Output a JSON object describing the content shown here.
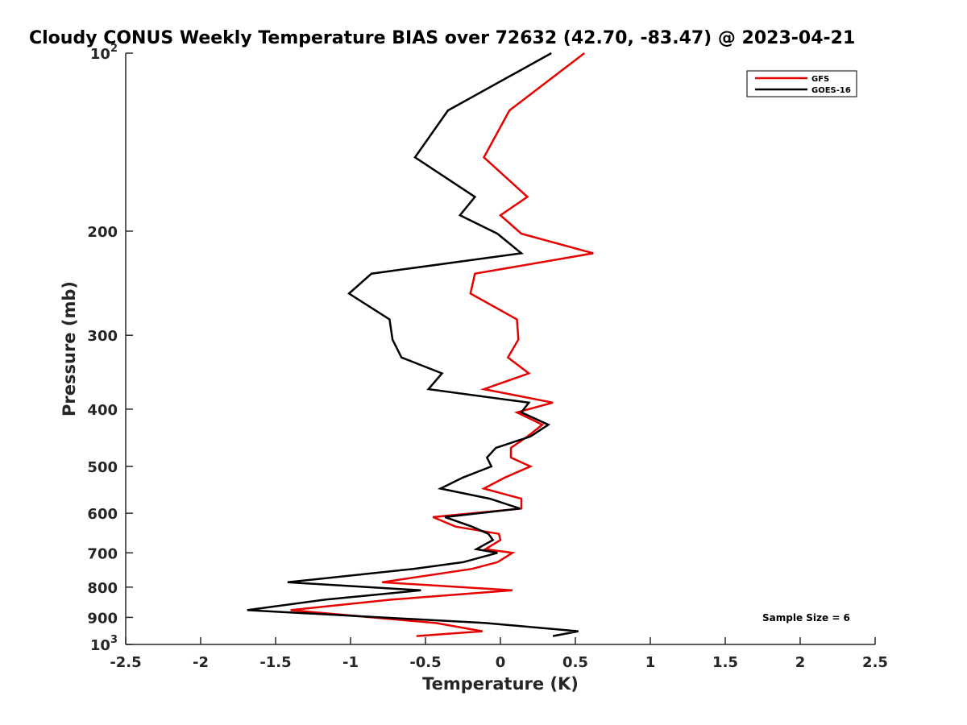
{
  "chart_data": {
    "type": "line",
    "title": "Cloudy CONUS Weekly Temperature BIAS over 72632 (42.70, -83.47) @ 2023-04-21",
    "xlabel": "Temperature (K)",
    "ylabel": "Pressure (mb)",
    "xlim": [
      -2.5,
      2.5
    ],
    "ylim": [
      1000,
      100
    ],
    "yscale": "log",
    "x_ticks": [
      "-2.5",
      "-2",
      "-1.5",
      "-1",
      "-0.5",
      "0",
      "0.5",
      "1",
      "1.5",
      "2",
      "2.5"
    ],
    "y_ticks": [
      {
        "base": "10",
        "exp": "2",
        "value": 100
      },
      {
        "label": "200",
        "value": 200
      },
      {
        "label": "300",
        "value": 300
      },
      {
        "label": "400",
        "value": 400
      },
      {
        "label": "500",
        "value": 500
      },
      {
        "label": "600",
        "value": 600
      },
      {
        "label": "700",
        "value": 700
      },
      {
        "label": "800",
        "value": 800
      },
      {
        "label": "900",
        "value": 900
      },
      {
        "base": "10",
        "exp": "3",
        "value": 1000
      }
    ],
    "grid": false,
    "legend_position": "top-right",
    "annotation": "Sample Size = 6",
    "series": [
      {
        "name": "GFS",
        "color": "#e60000",
        "points": [
          [
            0.56,
            100
          ],
          [
            0.06,
            125
          ],
          [
            -0.11,
            150
          ],
          [
            0.18,
            175
          ],
          [
            0.0,
            188
          ],
          [
            0.14,
            202
          ],
          [
            0.62,
            218
          ],
          [
            -0.17,
            236
          ],
          [
            -0.2,
            255
          ],
          [
            0.11,
            282
          ],
          [
            0.12,
            305
          ],
          [
            0.05,
            327
          ],
          [
            0.19,
            348
          ],
          [
            -0.11,
            370
          ],
          [
            0.35,
            390
          ],
          [
            0.11,
            405
          ],
          [
            0.28,
            425
          ],
          [
            0.18,
            445
          ],
          [
            0.07,
            465
          ],
          [
            0.07,
            483
          ],
          [
            0.2,
            500
          ],
          [
            0.03,
            522
          ],
          [
            -0.11,
            545
          ],
          [
            0.14,
            567
          ],
          [
            0.14,
            589
          ],
          [
            -0.45,
            609
          ],
          [
            -0.3,
            632
          ],
          [
            -0.01,
            650
          ],
          [
            0.0,
            666
          ],
          [
            -0.1,
            690
          ],
          [
            0.08,
            700
          ],
          [
            -0.02,
            726
          ],
          [
            -0.19,
            745
          ],
          [
            -0.79,
            785
          ],
          [
            0.08,
            810
          ],
          [
            -0.73,
            840
          ],
          [
            -1.4,
            875
          ],
          [
            -0.43,
            920
          ],
          [
            -0.12,
            950
          ],
          [
            -0.56,
            968
          ]
        ]
      },
      {
        "name": "GOES-16",
        "color": "#000000",
        "points": [
          [
            0.34,
            100
          ],
          [
            -0.35,
            125
          ],
          [
            -0.57,
            150
          ],
          [
            -0.17,
            175
          ],
          [
            -0.27,
            188
          ],
          [
            -0.02,
            202
          ],
          [
            0.14,
            218
          ],
          [
            -0.86,
            236
          ],
          [
            -1.01,
            255
          ],
          [
            -0.74,
            282
          ],
          [
            -0.72,
            305
          ],
          [
            -0.66,
            327
          ],
          [
            -0.39,
            348
          ],
          [
            -0.48,
            370
          ],
          [
            0.19,
            390
          ],
          [
            0.14,
            405
          ],
          [
            0.32,
            425
          ],
          [
            0.2,
            445
          ],
          [
            -0.03,
            465
          ],
          [
            -0.09,
            483
          ],
          [
            -0.06,
            500
          ],
          [
            -0.25,
            522
          ],
          [
            -0.4,
            545
          ],
          [
            -0.07,
            567
          ],
          [
            0.13,
            589
          ],
          [
            -0.37,
            609
          ],
          [
            -0.19,
            632
          ],
          [
            -0.08,
            650
          ],
          [
            -0.05,
            666
          ],
          [
            -0.16,
            690
          ],
          [
            -0.02,
            700
          ],
          [
            -0.25,
            726
          ],
          [
            -0.58,
            745
          ],
          [
            -1.42,
            785
          ],
          [
            -0.53,
            810
          ],
          [
            -1.17,
            840
          ],
          [
            -1.69,
            875
          ],
          [
            -0.1,
            920
          ],
          [
            0.52,
            950
          ],
          [
            0.35,
            968
          ]
        ]
      }
    ]
  }
}
